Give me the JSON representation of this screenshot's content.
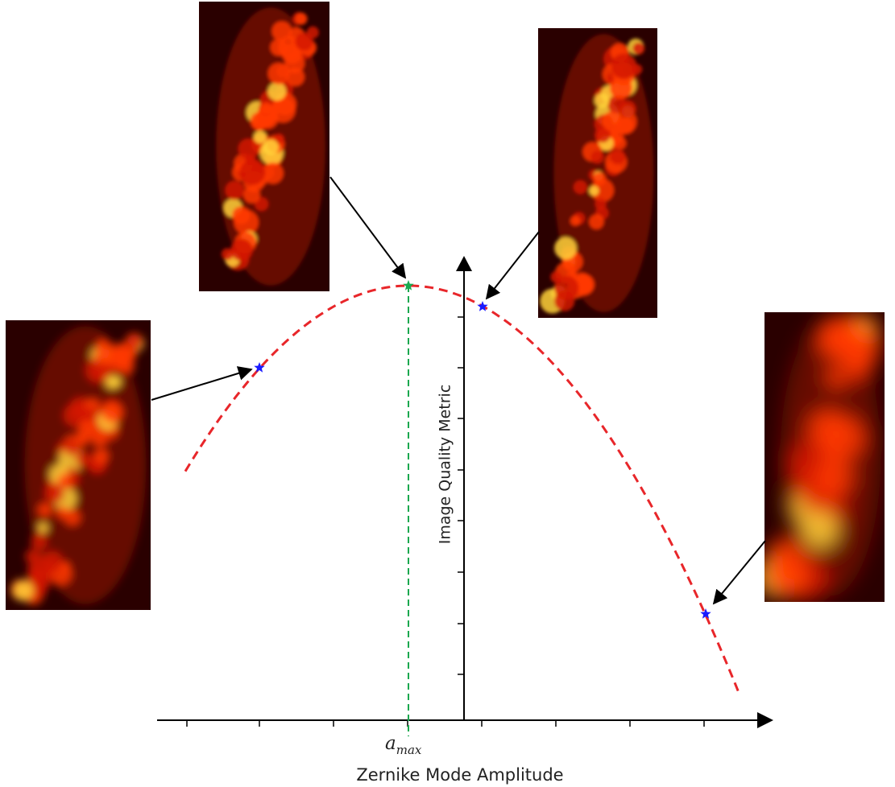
{
  "figure": {
    "y_axis_label": "Image Quality Metric",
    "x_axis_label": "Zernike Mode Amplitude",
    "peak_label": {
      "main": "a",
      "sub": "max"
    }
  },
  "chart_data": {
    "type": "line",
    "curve": {
      "shape": "inverted parabola",
      "style": "dashed",
      "color": "#e8262a"
    },
    "peak_line": {
      "style": "dashed",
      "color": "#1aa84f"
    },
    "markers": [
      {
        "id": "left",
        "symbol": "star",
        "color": "#1a1aff"
      },
      {
        "id": "peak",
        "symbol": "star",
        "color": "#1aa84f"
      },
      {
        "id": "right-near",
        "symbol": "star",
        "color": "#1a1aff"
      },
      {
        "id": "right-far",
        "symbol": "star",
        "color": "#1a1aff"
      }
    ],
    "thumbnails": [
      {
        "id": "far-left",
        "points_to": "left",
        "sharpness": "medium"
      },
      {
        "id": "top",
        "points_to": "peak",
        "sharpness": "sharp"
      },
      {
        "id": "top-right",
        "points_to": "right-near",
        "sharpness": "sharp"
      },
      {
        "id": "far-right",
        "points_to": "right-far",
        "sharpness": "blurry"
      }
    ],
    "x_ticks": 8,
    "y_ticks": 8,
    "colors": {
      "axis": "#000000",
      "curve": "#e8262a",
      "peak": "#1aa84f",
      "marker": "#1a1aff"
    }
  }
}
